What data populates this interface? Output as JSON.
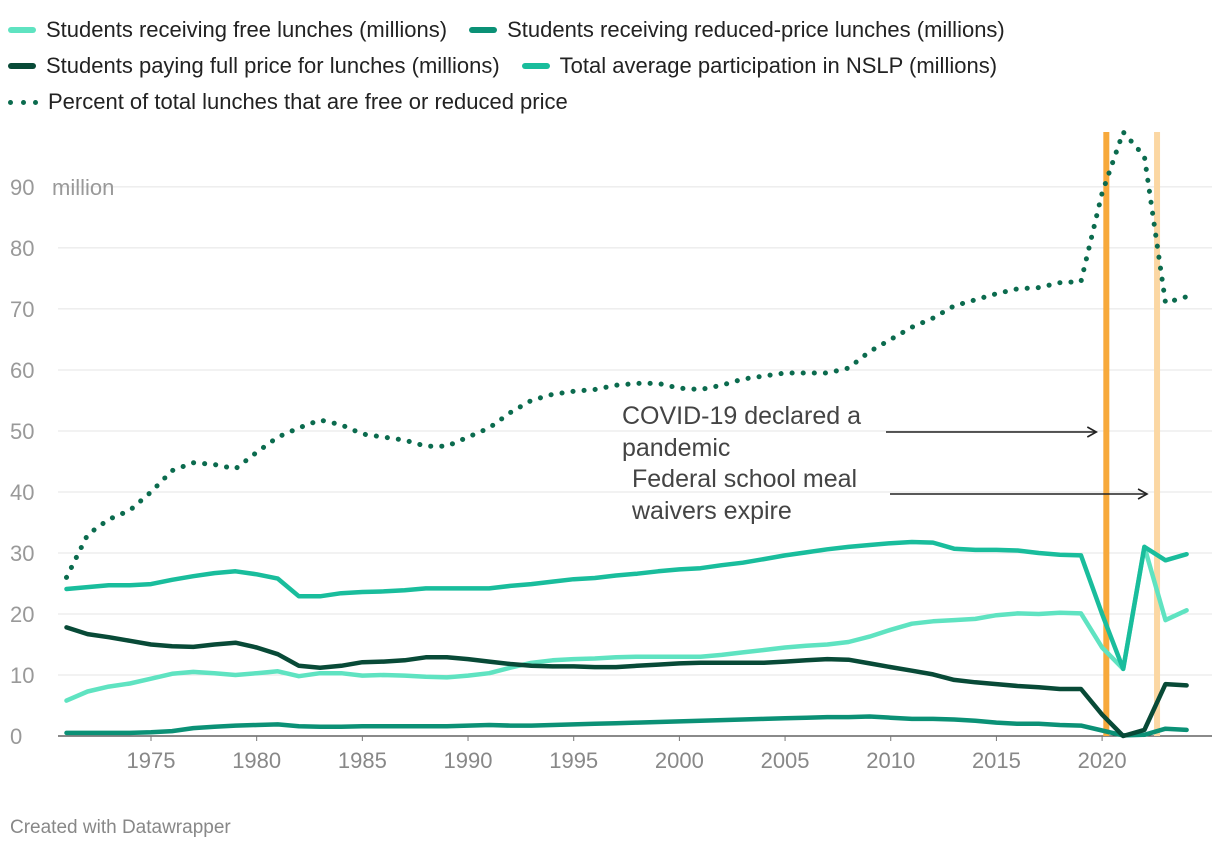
{
  "chart_data": {
    "type": "line",
    "y_unit": "million",
    "ylim": [
      0,
      99
    ],
    "y_ticks": [
      0,
      10,
      20,
      30,
      40,
      50,
      60,
      70,
      80,
      90
    ],
    "xlim": [
      1970.6,
      2025.2
    ],
    "x_ticks": [
      1975,
      1980,
      1985,
      1990,
      1995,
      2000,
      2005,
      2010,
      2015,
      2020
    ],
    "x": [
      1971,
      1972,
      1973,
      1974,
      1975,
      1976,
      1977,
      1978,
      1979,
      1980,
      1981,
      1982,
      1983,
      1984,
      1985,
      1986,
      1987,
      1988,
      1989,
      1990,
      1991,
      1992,
      1993,
      1994,
      1995,
      1996,
      1997,
      1998,
      1999,
      2000,
      2001,
      2002,
      2003,
      2004,
      2005,
      2006,
      2007,
      2008,
      2009,
      2010,
      2011,
      2012,
      2013,
      2014,
      2015,
      2016,
      2017,
      2018,
      2019,
      2020,
      2021,
      2022,
      2023,
      2024
    ],
    "series": [
      {
        "name": "Students receiving free lunches (millions)",
        "color": "#5fe3c1",
        "style": "solid",
        "values": [
          5.8,
          7.3,
          8.1,
          8.6,
          9.4,
          10.2,
          10.5,
          10.3,
          10.0,
          10.3,
          10.6,
          9.8,
          10.3,
          10.3,
          9.9,
          10.0,
          9.9,
          9.7,
          9.6,
          9.9,
          10.3,
          11.2,
          12.0,
          12.4,
          12.6,
          12.7,
          12.9,
          13.0,
          13.0,
          13.0,
          13.0,
          13.3,
          13.7,
          14.1,
          14.5,
          14.8,
          15.0,
          15.4,
          16.3,
          17.4,
          18.4,
          18.8,
          19.0,
          19.2,
          19.8,
          20.1,
          20.0,
          20.2,
          20.1,
          14.5,
          11.0,
          31.0,
          19.0,
          20.6
        ]
      },
      {
        "name": "Students receiving reduced-price lunches (millions)",
        "color": "#0b9176",
        "style": "solid",
        "values": [
          0.5,
          0.5,
          0.5,
          0.5,
          0.6,
          0.8,
          1.3,
          1.5,
          1.7,
          1.8,
          1.9,
          1.6,
          1.5,
          1.5,
          1.6,
          1.6,
          1.6,
          1.6,
          1.6,
          1.7,
          1.8,
          1.7,
          1.7,
          1.8,
          1.9,
          2.0,
          2.1,
          2.2,
          2.3,
          2.4,
          2.5,
          2.6,
          2.7,
          2.8,
          2.9,
          3.0,
          3.1,
          3.1,
          3.2,
          3.0,
          2.8,
          2.8,
          2.7,
          2.5,
          2.2,
          2.0,
          2.0,
          1.8,
          1.7,
          0.9,
          0.1,
          0.2,
          1.2,
          1.0
        ]
      },
      {
        "name": "Students paying full price for lunches (millions)",
        "color": "#084a37",
        "style": "solid",
        "values": [
          17.8,
          16.7,
          16.2,
          15.6,
          15.0,
          14.7,
          14.6,
          15.0,
          15.3,
          14.5,
          13.4,
          11.5,
          11.2,
          11.5,
          12.1,
          12.2,
          12.4,
          12.9,
          12.9,
          12.6,
          12.2,
          11.8,
          11.5,
          11.4,
          11.4,
          11.3,
          11.3,
          11.5,
          11.7,
          11.9,
          12.0,
          12.0,
          12.0,
          12.0,
          12.2,
          12.4,
          12.6,
          12.5,
          11.9,
          11.3,
          10.7,
          10.1,
          9.2,
          8.8,
          8.5,
          8.2,
          8.0,
          7.7,
          7.7,
          3.5,
          0.0,
          1.0,
          8.5,
          8.3
        ]
      },
      {
        "name": "Total average participation in NSLP (millions)",
        "color": "#19bd9c",
        "style": "solid",
        "values": [
          24.1,
          24.4,
          24.7,
          24.7,
          24.9,
          25.6,
          26.2,
          26.7,
          27.0,
          26.5,
          25.8,
          22.9,
          22.9,
          23.4,
          23.6,
          23.7,
          23.9,
          24.2,
          24.2,
          24.2,
          24.2,
          24.6,
          24.9,
          25.3,
          25.7,
          25.9,
          26.3,
          26.6,
          27.0,
          27.3,
          27.5,
          28.0,
          28.4,
          29.0,
          29.6,
          30.1,
          30.6,
          31.0,
          31.3,
          31.6,
          31.8,
          31.7,
          30.7,
          30.5,
          30.5,
          30.4,
          30.0,
          29.7,
          29.6,
          20.0,
          11.0,
          31.0,
          28.8,
          29.8
        ]
      },
      {
        "name": "Percent of total lunches that are free or reduced price",
        "color": "#0b6b4e",
        "style": "dotted",
        "values": [
          26.0,
          33.0,
          35.5,
          37.0,
          40.0,
          43.5,
          44.8,
          44.5,
          43.8,
          46.5,
          49.0,
          50.5,
          51.8,
          51.0,
          49.5,
          49.0,
          48.5,
          47.5,
          47.5,
          49.0,
          50.5,
          53.0,
          55.0,
          56.0,
          56.5,
          56.8,
          57.5,
          57.8,
          57.8,
          57.0,
          56.8,
          57.5,
          58.5,
          59.0,
          59.5,
          59.5,
          59.5,
          60.3,
          63.0,
          65.0,
          67.0,
          68.5,
          70.5,
          71.5,
          72.5,
          73.3,
          73.5,
          74.3,
          74.5,
          89.0,
          99.0,
          95.0,
          71.0,
          72.0
        ]
      }
    ],
    "annotations": [
      {
        "text": "COVID-19 declared a pandemic",
        "x": 2020.2,
        "y_text": 50,
        "line_color": "#f7a93b"
      },
      {
        "text": "Federal school meal waivers expire",
        "x": 2022.6,
        "y_text": 40,
        "line_color": "#fbd7a3"
      }
    ]
  },
  "annotation_text": {
    "covid_line1": "COVID-19 declared a",
    "covid_line2": "pandemic",
    "waiver_line1": "Federal school meal",
    "waiver_line2": "waivers expire"
  },
  "footer": {
    "credit": "Created with Datawrapper"
  }
}
